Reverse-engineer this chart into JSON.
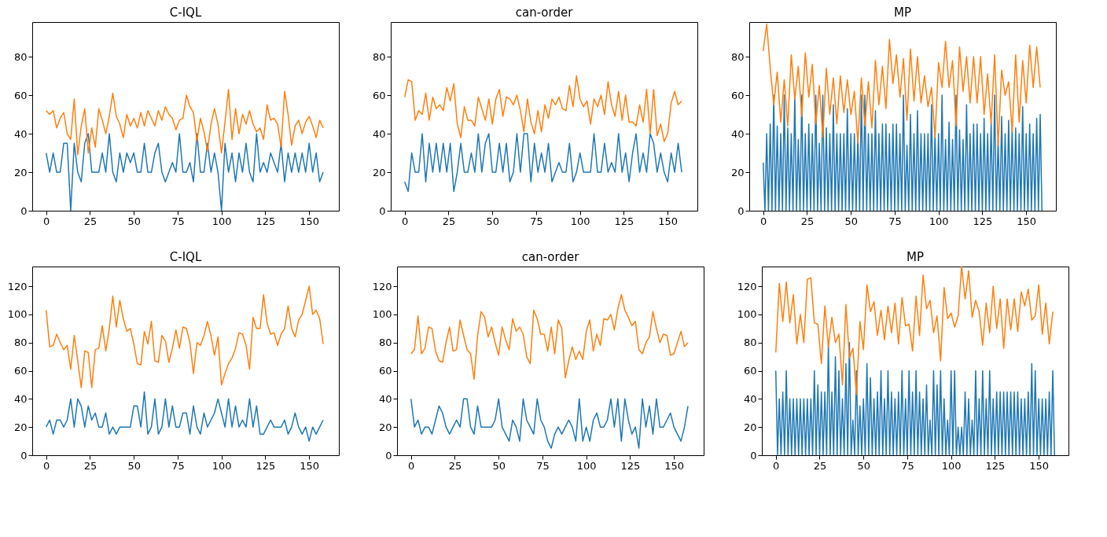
{
  "chart_data": [
    {
      "type": "line",
      "title": "C-IQL",
      "xlim": [
        -7.95,
        166.95
      ],
      "xticks": [
        0,
        25,
        50,
        75,
        100,
        125,
        150
      ],
      "ylim": [
        0,
        98
      ],
      "yticks": [
        0,
        20,
        40,
        60,
        80
      ],
      "x": [
        0,
        2,
        4,
        6,
        8,
        10,
        12,
        14,
        16,
        18,
        20,
        22,
        24,
        26,
        28,
        30,
        32,
        34,
        36,
        38,
        40,
        42,
        44,
        46,
        48,
        50,
        52,
        54,
        56,
        58,
        60,
        62,
        64,
        66,
        68,
        70,
        72,
        74,
        76,
        78,
        80,
        82,
        84,
        86,
        88,
        90,
        92,
        94,
        96,
        98,
        100,
        102,
        104,
        106,
        108,
        110,
        112,
        114,
        116,
        118,
        120,
        122,
        124,
        126,
        128,
        130,
        132,
        134,
        136,
        138,
        140,
        142,
        144,
        146,
        148,
        150,
        152,
        154,
        156,
        158
      ],
      "series": [
        {
          "color": "#1f77b4",
          "values": [
            30,
            20,
            30,
            20,
            20,
            35,
            35,
            0,
            35,
            20,
            15,
            35,
            40,
            20,
            20,
            20,
            30,
            20,
            40,
            20,
            15,
            30,
            20,
            30,
            25,
            30,
            20,
            20,
            35,
            20,
            20,
            30,
            35,
            20,
            15,
            20,
            25,
            20,
            40,
            20,
            20,
            25,
            15,
            40,
            20,
            20,
            35,
            20,
            30,
            20,
            0,
            35,
            20,
            30,
            15,
            30,
            20,
            35,
            20,
            15,
            40,
            20,
            25,
            20,
            30,
            25,
            20,
            35,
            15,
            30,
            20,
            30,
            20,
            30,
            20,
            35,
            20,
            30,
            15,
            20
          ]
        },
        {
          "color": "#ff7f0e",
          "values": [
            52,
            50,
            52,
            43,
            48,
            51,
            40,
            37,
            58,
            29,
            44,
            53,
            30,
            43,
            33,
            53,
            47,
            40,
            49,
            61,
            49,
            45,
            38,
            50,
            44,
            48,
            43,
            51,
            44,
            52,
            48,
            44,
            52,
            47,
            54,
            50,
            48,
            42,
            47,
            48,
            60,
            54,
            51,
            36,
            48,
            41,
            31,
            45,
            53,
            45,
            30,
            46,
            63,
            37,
            53,
            40,
            50,
            45,
            52,
            45,
            41,
            43,
            37,
            55,
            47,
            48,
            45,
            33,
            62,
            50,
            34,
            44,
            47,
            40,
            46,
            49,
            44,
            38,
            47,
            43
          ]
        }
      ]
    },
    {
      "type": "line",
      "title": "can-order",
      "xlim": [
        -7.95,
        166.95
      ],
      "xticks": [
        0,
        25,
        50,
        75,
        100,
        125,
        150
      ],
      "ylim": [
        0,
        98
      ],
      "yticks": [
        0,
        20,
        40,
        60,
        80
      ],
      "x": [
        0,
        2,
        4,
        6,
        8,
        10,
        12,
        14,
        16,
        18,
        20,
        22,
        24,
        26,
        28,
        30,
        32,
        34,
        36,
        38,
        40,
        42,
        44,
        46,
        48,
        50,
        52,
        54,
        56,
        58,
        60,
        62,
        64,
        66,
        68,
        70,
        72,
        74,
        76,
        78,
        80,
        82,
        84,
        86,
        88,
        90,
        92,
        94,
        96,
        98,
        100,
        102,
        104,
        106,
        108,
        110,
        112,
        114,
        116,
        118,
        120,
        122,
        124,
        126,
        128,
        130,
        132,
        134,
        136,
        138,
        140,
        142,
        144,
        146,
        148,
        150,
        152,
        154,
        156,
        158
      ],
      "series": [
        {
          "color": "#1f77b4",
          "values": [
            15,
            10,
            30,
            20,
            20,
            40,
            15,
            35,
            20,
            35,
            20,
            35,
            20,
            35,
            10,
            20,
            35,
            20,
            20,
            30,
            20,
            40,
            20,
            35,
            40,
            20,
            20,
            35,
            20,
            35,
            15,
            20,
            40,
            20,
            40,
            40,
            15,
            35,
            20,
            30,
            20,
            35,
            15,
            20,
            25,
            20,
            20,
            35,
            15,
            20,
            30,
            20,
            20,
            20,
            40,
            20,
            20,
            35,
            20,
            25,
            20,
            40,
            20,
            30,
            15,
            30,
            40,
            20,
            30,
            20,
            40,
            35,
            20,
            30,
            20,
            15,
            30,
            20,
            35,
            20
          ]
        },
        {
          "color": "#ff7f0e",
          "values": [
            59,
            68,
            67,
            47,
            52,
            50,
            61,
            47,
            59,
            53,
            55,
            52,
            64,
            57,
            66,
            45,
            38,
            54,
            47,
            47,
            44,
            59,
            53,
            47,
            58,
            45,
            58,
            63,
            49,
            59,
            58,
            55,
            60,
            52,
            41,
            58,
            46,
            40,
            52,
            41,
            55,
            48,
            58,
            55,
            59,
            53,
            52,
            65,
            54,
            70,
            58,
            54,
            57,
            45,
            58,
            54,
            60,
            50,
            67,
            55,
            49,
            62,
            47,
            60,
            46,
            46,
            44,
            55,
            46,
            63,
            40,
            63,
            39,
            45,
            36,
            40,
            56,
            62,
            55,
            57
          ]
        }
      ]
    },
    {
      "type": "line",
      "title": "MP",
      "xlim": [
        -7.95,
        166.95
      ],
      "xticks": [
        0,
        25,
        50,
        75,
        100,
        125,
        150
      ],
      "ylim": [
        0,
        98
      ],
      "yticks": [
        0,
        20,
        40,
        60,
        80
      ],
      "x": [
        0,
        2,
        4,
        6,
        8,
        10,
        12,
        14,
        16,
        18,
        20,
        22,
        24,
        26,
        28,
        30,
        32,
        34,
        36,
        38,
        40,
        42,
        44,
        46,
        48,
        50,
        52,
        54,
        56,
        58,
        60,
        62,
        64,
        66,
        68,
        70,
        72,
        74,
        76,
        78,
        80,
        82,
        84,
        86,
        88,
        90,
        92,
        94,
        96,
        98,
        100,
        102,
        104,
        106,
        108,
        110,
        112,
        114,
        116,
        118,
        120,
        122,
        124,
        126,
        128,
        130,
        132,
        134,
        136,
        138,
        140,
        142,
        144,
        146,
        148,
        150,
        152,
        154,
        156,
        158
      ],
      "series": [
        {
          "color": "#1f77b4",
          "x": [
            0,
            1,
            2,
            3,
            4,
            5,
            6,
            7,
            8,
            9,
            10,
            11,
            12,
            13,
            14,
            15,
            16,
            17,
            18,
            19,
            20,
            21,
            22,
            23,
            24,
            25,
            26,
            27,
            28,
            29,
            30,
            31,
            32,
            33,
            34,
            35,
            36,
            37,
            38,
            39,
            40,
            41,
            42,
            43,
            44,
            45,
            46,
            47,
            48,
            49,
            50,
            51,
            52,
            53,
            54,
            55,
            56,
            57,
            58,
            59,
            60,
            61,
            62,
            63,
            64,
            65,
            66,
            67,
            68,
            69,
            70,
            71,
            72,
            73,
            74,
            75,
            76,
            77,
            78,
            79,
            80,
            81,
            82,
            83,
            84,
            85,
            86,
            87,
            88,
            89,
            90,
            91,
            92,
            93,
            94,
            95,
            96,
            97,
            98,
            99,
            100,
            101,
            102,
            103,
            104,
            105,
            106,
            107,
            108,
            109,
            110,
            111,
            112,
            113,
            114,
            115,
            116,
            117,
            118,
            119,
            120,
            121,
            122,
            123,
            124,
            125,
            126,
            127,
            128,
            129,
            130,
            131,
            132,
            133,
            134,
            135,
            136,
            137,
            138,
            139,
            140,
            141,
            142,
            143,
            144,
            145,
            146,
            147,
            148,
            149,
            150,
            151,
            152,
            153,
            154,
            155,
            156,
            157,
            158,
            159
          ],
          "values": [
            25,
            0,
            40,
            0,
            45,
            0,
            60,
            0,
            44,
            0,
            40,
            0,
            60,
            0,
            43,
            0,
            40,
            0,
            60,
            0,
            37,
            0,
            60,
            0,
            40,
            0,
            45,
            0,
            40,
            0,
            60,
            0,
            35,
            0,
            60,
            0,
            43,
            0,
            40,
            0,
            55,
            0,
            40,
            0,
            40,
            0,
            40,
            0,
            53,
            0,
            40,
            0,
            40,
            0,
            40,
            0,
            60,
            0,
            60,
            0,
            40,
            0,
            40,
            0,
            52,
            0,
            40,
            0,
            45,
            0,
            45,
            0,
            40,
            0,
            45,
            0,
            45,
            0,
            40,
            0,
            60,
            0,
            34,
            0,
            50,
            0,
            40,
            0,
            52,
            0,
            40,
            0,
            40,
            0,
            40,
            0,
            55,
            0,
            40,
            0,
            40,
            0,
            60,
            0,
            37,
            0,
            46,
            0,
            37,
            0,
            60,
            0,
            42,
            0,
            37,
            0,
            55,
            0,
            40,
            0,
            45,
            0,
            45,
            0,
            40,
            0,
            48,
            0,
            40,
            0,
            46,
            0,
            60,
            0,
            37,
            0,
            49,
            0,
            40,
            0,
            47,
            0,
            43,
            0,
            43,
            0,
            40,
            0,
            54,
            0,
            40,
            0,
            45,
            0,
            40,
            0,
            48,
            0,
            50,
            0
          ]
        },
        {
          "color": "#ff7f0e",
          "values": [
            83,
            97,
            74,
            55,
            72,
            46,
            68,
            44,
            81,
            58,
            75,
            49,
            82,
            59,
            76,
            45,
            65,
            38,
            74,
            50,
            69,
            45,
            70,
            51,
            68,
            50,
            62,
            35,
            69,
            44,
            67,
            43,
            78,
            55,
            75,
            53,
            89,
            66,
            81,
            59,
            79,
            47,
            84,
            57,
            80,
            56,
            70,
            54,
            64,
            38,
            77,
            64,
            88,
            64,
            78,
            44,
            85,
            62,
            80,
            56,
            80,
            56,
            80,
            50,
            71,
            45,
            81,
            34,
            73,
            60,
            67,
            41,
            81,
            46,
            78,
            56,
            86,
            64,
            85,
            64
          ]
        }
      ]
    },
    {
      "type": "line",
      "title": "C-IQL",
      "xlim": [
        -7.95,
        166.95
      ],
      "xticks": [
        0,
        25,
        50,
        75,
        100,
        125,
        150
      ],
      "ylim": [
        0,
        134
      ],
      "yticks": [
        0,
        20,
        40,
        60,
        80,
        100,
        120
      ],
      "x": [
        0,
        2,
        4,
        6,
        8,
        10,
        12,
        14,
        16,
        18,
        20,
        22,
        24,
        26,
        28,
        30,
        32,
        34,
        36,
        38,
        40,
        42,
        44,
        46,
        48,
        50,
        52,
        54,
        56,
        58,
        60,
        62,
        64,
        66,
        68,
        70,
        72,
        74,
        76,
        78,
        80,
        82,
        84,
        86,
        88,
        90,
        92,
        94,
        96,
        98,
        100,
        102,
        104,
        106,
        108,
        110,
        112,
        114,
        116,
        118,
        120,
        122,
        124,
        126,
        128,
        130,
        132,
        134,
        136,
        138,
        140,
        142,
        144,
        146,
        148,
        150,
        152,
        154,
        156,
        158
      ],
      "series": [
        {
          "color": "#1f77b4",
          "values": [
            20,
            25,
            15,
            25,
            25,
            20,
            25,
            40,
            20,
            40,
            35,
            20,
            35,
            25,
            30,
            20,
            20,
            30,
            15,
            20,
            15,
            20,
            20,
            20,
            20,
            35,
            35,
            20,
            45,
            15,
            20,
            40,
            15,
            20,
            40,
            20,
            35,
            20,
            20,
            30,
            30,
            15,
            35,
            20,
            15,
            30,
            20,
            25,
            30,
            40,
            30,
            20,
            40,
            20,
            35,
            20,
            25,
            20,
            40,
            20,
            35,
            15,
            15,
            20,
            25,
            20,
            20,
            20,
            25,
            15,
            20,
            30,
            20,
            15,
            20,
            10,
            20,
            15,
            20,
            25
          ]
        },
        {
          "color": "#ff7f0e",
          "values": [
            103,
            77,
            78,
            86,
            80,
            75,
            78,
            61,
            85,
            67,
            48,
            74,
            73,
            48,
            75,
            76,
            92,
            74,
            90,
            113,
            91,
            110,
            97,
            88,
            90,
            79,
            65,
            64,
            88,
            79,
            95,
            67,
            66,
            85,
            81,
            66,
            76,
            89,
            76,
            91,
            90,
            80,
            58,
            80,
            78,
            85,
            95,
            85,
            71,
            84,
            50,
            58,
            65,
            69,
            76,
            87,
            86,
            78,
            61,
            98,
            90,
            90,
            114,
            94,
            86,
            87,
            78,
            86,
            90,
            106,
            90,
            84,
            96,
            100,
            110,
            120,
            100,
            103,
            97,
            79
          ]
        }
      ]
    },
    {
      "type": "line",
      "title": "can-order",
      "xlim": [
        -7.95,
        166.95
      ],
      "xticks": [
        0,
        25,
        50,
        75,
        100,
        125,
        150
      ],
      "ylim": [
        0,
        134
      ],
      "yticks": [
        0,
        20,
        40,
        60,
        80,
        100,
        120
      ],
      "x": [
        0,
        2,
        4,
        6,
        8,
        10,
        12,
        14,
        16,
        18,
        20,
        22,
        24,
        26,
        28,
        30,
        32,
        34,
        36,
        38,
        40,
        42,
        44,
        46,
        48,
        50,
        52,
        54,
        56,
        58,
        60,
        62,
        64,
        66,
        68,
        70,
        72,
        74,
        76,
        78,
        80,
        82,
        84,
        86,
        88,
        90,
        92,
        94,
        96,
        98,
        100,
        102,
        104,
        106,
        108,
        110,
        112,
        114,
        116,
        118,
        120,
        122,
        124,
        126,
        128,
        130,
        132,
        134,
        136,
        138,
        140,
        142,
        144,
        146,
        148,
        150,
        152,
        154,
        156,
        158
      ],
      "series": [
        {
          "color": "#1f77b4",
          "values": [
            40,
            20,
            25,
            15,
            20,
            20,
            15,
            25,
            35,
            30,
            20,
            15,
            20,
            25,
            20,
            40,
            40,
            20,
            15,
            35,
            20,
            20,
            20,
            20,
            25,
            40,
            20,
            15,
            10,
            25,
            20,
            10,
            40,
            25,
            20,
            15,
            40,
            25,
            20,
            10,
            5,
            15,
            20,
            15,
            20,
            25,
            20,
            10,
            40,
            10,
            20,
            10,
            25,
            30,
            20,
            20,
            25,
            40,
            20,
            40,
            10,
            40,
            25,
            15,
            20,
            5,
            40,
            20,
            35,
            15,
            40,
            20,
            20,
            25,
            30,
            20,
            15,
            10,
            20,
            35
          ]
        },
        {
          "color": "#ff7f0e",
          "values": [
            72,
            75,
            99,
            72,
            76,
            91,
            90,
            74,
            67,
            66,
            80,
            91,
            74,
            75,
            96,
            85,
            75,
            72,
            54,
            85,
            102,
            98,
            84,
            91,
            80,
            71,
            91,
            82,
            75,
            97,
            88,
            91,
            86,
            70,
            65,
            103,
            97,
            86,
            86,
            74,
            91,
            72,
            96,
            90,
            55,
            67,
            77,
            68,
            74,
            68,
            88,
            96,
            74,
            86,
            78,
            97,
            96,
            100,
            89,
            104,
            114,
            103,
            98,
            92,
            95,
            75,
            72,
            80,
            84,
            102,
            90,
            80,
            86,
            85,
            71,
            72,
            80,
            88,
            77,
            80
          ]
        }
      ]
    },
    {
      "type": "line",
      "title": "MP",
      "xlim": [
        -7.95,
        166.95
      ],
      "xticks": [
        0,
        25,
        50,
        75,
        100,
        125,
        150
      ],
      "ylim": [
        0,
        134
      ],
      "yticks": [
        0,
        20,
        40,
        60,
        80,
        100,
        120
      ],
      "x": [
        0,
        2,
        4,
        6,
        8,
        10,
        12,
        14,
        16,
        18,
        20,
        22,
        24,
        26,
        28,
        30,
        32,
        34,
        36,
        38,
        40,
        42,
        44,
        46,
        48,
        50,
        52,
        54,
        56,
        58,
        60,
        62,
        64,
        66,
        68,
        70,
        72,
        74,
        76,
        78,
        80,
        82,
        84,
        86,
        88,
        90,
        92,
        94,
        96,
        98,
        100,
        102,
        104,
        106,
        108,
        110,
        112,
        114,
        116,
        118,
        120,
        122,
        124,
        126,
        128,
        130,
        132,
        134,
        136,
        138,
        140,
        142,
        144,
        146,
        148,
        150,
        152,
        154,
        156,
        158
      ],
      "series": [
        {
          "color": "#1f77b4",
          "x": [
            0,
            1,
            2,
            3,
            4,
            5,
            6,
            7,
            8,
            9,
            10,
            11,
            12,
            13,
            14,
            15,
            16,
            17,
            18,
            19,
            20,
            21,
            22,
            23,
            24,
            25,
            26,
            27,
            28,
            29,
            30,
            31,
            32,
            33,
            34,
            35,
            36,
            37,
            38,
            39,
            40,
            41,
            42,
            43,
            44,
            45,
            46,
            47,
            48,
            49,
            50,
            51,
            52,
            53,
            54,
            55,
            56,
            57,
            58,
            59,
            60,
            61,
            62,
            63,
            64,
            65,
            66,
            67,
            68,
            69,
            70,
            71,
            72,
            73,
            74,
            75,
            76,
            77,
            78,
            79,
            80,
            81,
            82,
            83,
            84,
            85,
            86,
            87,
            88,
            89,
            90,
            91,
            92,
            93,
            94,
            95,
            96,
            97,
            98,
            99,
            100,
            101,
            102,
            103,
            104,
            105,
            106,
            107,
            108,
            109,
            110,
            111,
            112,
            113,
            114,
            115,
            116,
            117,
            118,
            119,
            120,
            121,
            122,
            123,
            124,
            125,
            126,
            127,
            128,
            129,
            130,
            131,
            132,
            133,
            134,
            135,
            136,
            137,
            138,
            139,
            140,
            141,
            142,
            143,
            144,
            145,
            146,
            147,
            148,
            149,
            150,
            151,
            152,
            153,
            154,
            155,
            156,
            157,
            158,
            159
          ],
          "values": [
            60,
            0,
            40,
            0,
            45,
            0,
            60,
            0,
            40,
            0,
            40,
            0,
            40,
            0,
            40,
            0,
            40,
            0,
            40,
            0,
            40,
            0,
            60,
            0,
            50,
            0,
            45,
            0,
            45,
            0,
            80,
            0,
            45,
            0,
            70,
            0,
            60,
            0,
            40,
            0,
            65,
            0,
            80,
            0,
            25,
            0,
            60,
            0,
            35,
            0,
            40,
            0,
            65,
            0,
            55,
            0,
            40,
            0,
            45,
            0,
            60,
            0,
            40,
            0,
            60,
            0,
            45,
            0,
            40,
            0,
            45,
            0,
            60,
            0,
            40,
            0,
            60,
            0,
            45,
            0,
            60,
            0,
            45,
            0,
            40,
            0,
            50,
            0,
            25,
            0,
            60,
            0,
            50,
            0,
            60,
            0,
            40,
            0,
            25,
            0,
            60,
            0,
            60,
            0,
            20,
            0,
            20,
            0,
            45,
            0,
            40,
            0,
            25,
            0,
            60,
            0,
            40,
            0,
            60,
            0,
            40,
            0,
            60,
            0,
            40,
            0,
            45,
            0,
            45,
            0,
            45,
            0,
            45,
            0,
            45,
            0,
            45,
            0,
            45,
            0,
            40,
            0,
            40,
            0,
            45,
            0,
            65,
            0,
            60,
            0,
            40,
            0,
            40,
            0,
            40,
            0,
            45,
            0,
            60,
            0
          ]
        },
        {
          "color": "#ff7f0e",
          "values": [
            73,
            122,
            95,
            123,
            94,
            114,
            79,
            100,
            80,
            125,
            126,
            94,
            93,
            65,
            106,
            77,
            98,
            80,
            86,
            50,
            107,
            69,
            76,
            43,
            95,
            75,
            121,
            102,
            109,
            85,
            103,
            82,
            106,
            87,
            108,
            79,
            112,
            92,
            93,
            74,
            113,
            85,
            128,
            104,
            110,
            87,
            99,
            67,
            119,
            97,
            101,
            91,
            99,
            134,
            111,
            131,
            98,
            110,
            102,
            78,
            108,
            87,
            120,
            90,
            111,
            76,
            111,
            89,
            111,
            88,
            116,
            106,
            118,
            96,
            99,
            121,
            86,
            108,
            79,
            102
          ]
        }
      ]
    }
  ]
}
